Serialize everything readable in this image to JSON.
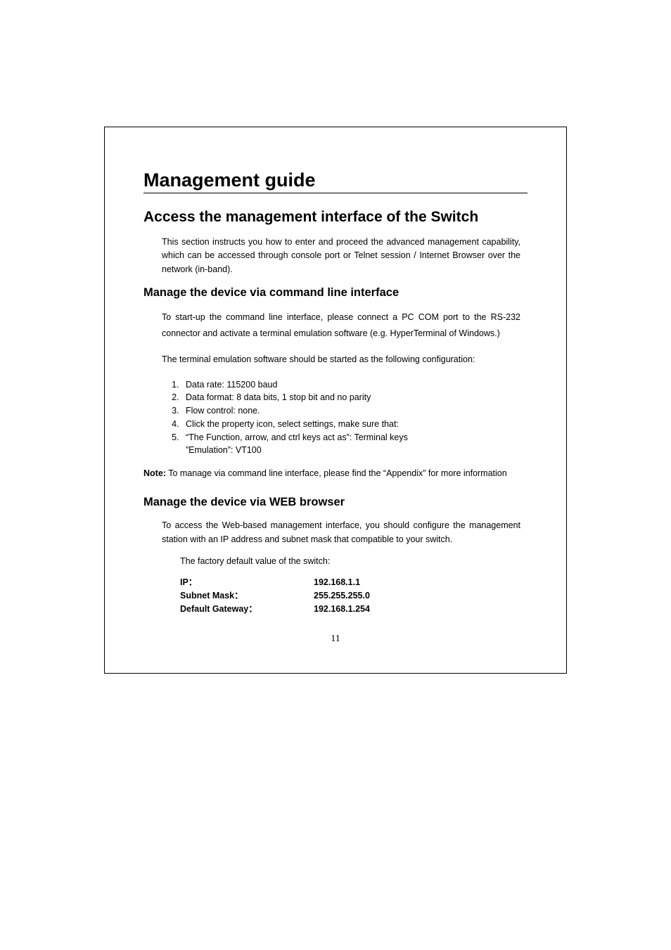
{
  "title": "Management guide",
  "section1": {
    "heading": "Access the management interface of the Switch",
    "intro": "This section instructs you how to enter and proceed the advanced management capability, which can be accessed through console port or Telnet session / Internet Browser over the network (in-band)."
  },
  "cli": {
    "heading": "Manage the device via command line interface",
    "p1": "To start-up the command line interface, please connect a PC COM port to the RS-232 connector and activate a terminal emulation software (e.g. HyperTerminal of Windows.)",
    "p2": "The terminal emulation software should be started as the following configuration:",
    "items": [
      "Data rate: 115200 baud",
      "Data format: 8 data bits, 1 stop bit and no parity",
      "Flow control: none.",
      "Click the property icon, select settings, make sure that:",
      "“The Function, arrow, and ctrl keys act as”: Terminal keys"
    ],
    "emulation": "”Emulation”: VT100",
    "note_label": "Note:",
    "note_text": " To manage via command line interface, please find the “Appendix” for more information"
  },
  "web": {
    "heading": "Manage the device via WEB browser",
    "p1": "To access the Web-based management interface, you should configure the management station with an IP address and subnet mask that compatible to your switch.",
    "factory": "The factory default value of the switch:",
    "rows": [
      {
        "k": "IP：",
        "v": "192.168.1.1"
      },
      {
        "k": "Subnet Mask：",
        "v": "255.255.255.0"
      },
      {
        "k": "Default Gateway：",
        "v": "192.168.1.254"
      }
    ]
  },
  "page_number": "11"
}
